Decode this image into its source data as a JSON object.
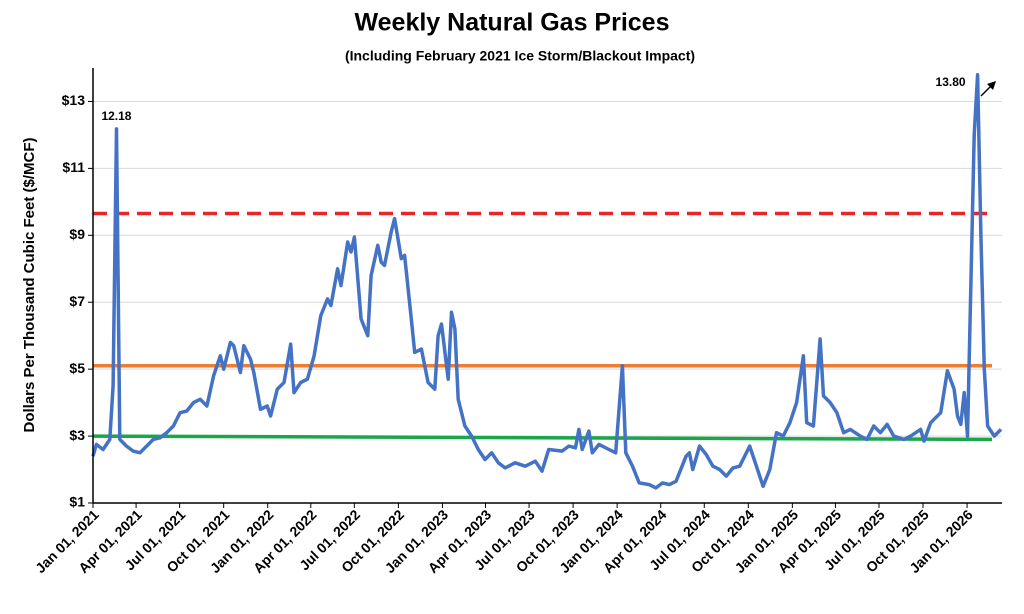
{
  "chart_data": {
    "type": "line",
    "title": "Weekly Natural Gas Prices",
    "subtitle": "(Including February 2021 Ice Storm/Blackout Impact)",
    "y_label": "Dollars Per Thousand Cubic Feet  ($/MCF)",
    "x": [
      "2021-01-01",
      "2021-01-08",
      "2021-01-22",
      "2021-02-05",
      "2021-02-12",
      "2021-02-19",
      "2021-02-26",
      "2021-03-12",
      "2021-03-26",
      "2021-04-09",
      "2021-04-23",
      "2021-05-07",
      "2021-05-21",
      "2021-06-04",
      "2021-06-18",
      "2021-07-02",
      "2021-07-16",
      "2021-07-30",
      "2021-08-13",
      "2021-08-27",
      "2021-09-10",
      "2021-09-24",
      "2021-10-01",
      "2021-10-15",
      "2021-10-22",
      "2021-11-05",
      "2021-11-12",
      "2021-11-26",
      "2021-12-03",
      "2021-12-17",
      "2021-12-31",
      "2022-01-07",
      "2022-01-21",
      "2022-02-04",
      "2022-02-18",
      "2022-02-25",
      "2022-03-11",
      "2022-03-25",
      "2022-04-08",
      "2022-04-22",
      "2022-05-06",
      "2022-05-13",
      "2022-05-27",
      "2022-06-03",
      "2022-06-17",
      "2022-06-24",
      "2022-07-01",
      "2022-07-15",
      "2022-07-29",
      "2022-08-05",
      "2022-08-19",
      "2022-08-26",
      "2022-09-02",
      "2022-09-16",
      "2022-09-23",
      "2022-10-07",
      "2022-10-14",
      "2022-10-28",
      "2022-11-04",
      "2022-11-18",
      "2022-12-02",
      "2022-12-16",
      "2022-12-23",
      "2022-12-30",
      "2023-01-13",
      "2023-01-20",
      "2023-01-27",
      "2023-02-03",
      "2023-02-17",
      "2023-03-03",
      "2023-03-17",
      "2023-03-31",
      "2023-04-14",
      "2023-04-28",
      "2023-05-12",
      "2023-06-02",
      "2023-06-23",
      "2023-07-14",
      "2023-07-28",
      "2023-08-11",
      "2023-09-08",
      "2023-09-22",
      "2023-10-06",
      "2023-10-13",
      "2023-10-20",
      "2023-11-03",
      "2023-11-10",
      "2023-11-24",
      "2023-12-15",
      "2023-12-29",
      "2024-01-12",
      "2024-01-19",
      "2024-02-02",
      "2024-02-16",
      "2024-03-08",
      "2024-03-22",
      "2024-04-05",
      "2024-04-19",
      "2024-05-03",
      "2024-05-24",
      "2024-05-31",
      "2024-06-07",
      "2024-06-21",
      "2024-07-05",
      "2024-07-19",
      "2024-08-02",
      "2024-08-16",
      "2024-08-30",
      "2024-09-13",
      "2024-10-04",
      "2024-10-18",
      "2024-11-01",
      "2024-11-15",
      "2024-11-29",
      "2024-12-13",
      "2024-12-27",
      "2025-01-10",
      "2025-01-24",
      "2025-01-31",
      "2025-02-14",
      "2025-02-28",
      "2025-03-07",
      "2025-03-21",
      "2025-04-04",
      "2025-04-18",
      "2025-05-02",
      "2025-05-23",
      "2025-06-06",
      "2025-06-20",
      "2025-07-04",
      "2025-07-18",
      "2025-08-01",
      "2025-08-22",
      "2025-09-05",
      "2025-09-26",
      "2025-10-03",
      "2025-10-17",
      "2025-11-07",
      "2025-11-21",
      "2025-12-05",
      "2025-12-12",
      "2025-12-19",
      "2025-12-26",
      "2026-01-02",
      "2026-01-16",
      "2026-01-23",
      "2026-01-30",
      "2026-02-06",
      "2026-02-13",
      "2026-02-27",
      "2026-03-13"
    ],
    "series": [
      {
        "color": "#4472c4",
        "values": [
          2.4,
          2.75,
          2.6,
          2.9,
          4.5,
          12.18,
          2.9,
          2.7,
          2.55,
          2.5,
          2.7,
          2.9,
          2.95,
          3.1,
          3.3,
          3.7,
          3.75,
          4.0,
          4.1,
          3.9,
          4.8,
          5.4,
          5.0,
          5.8,
          5.7,
          4.9,
          5.7,
          5.3,
          4.9,
          3.8,
          3.9,
          3.6,
          4.4,
          4.6,
          5.75,
          4.3,
          4.6,
          4.7,
          5.4,
          6.6,
          7.1,
          6.9,
          8.0,
          7.5,
          8.8,
          8.5,
          8.95,
          6.5,
          6.0,
          7.8,
          8.7,
          8.2,
          8.1,
          9.1,
          9.5,
          8.3,
          8.4,
          6.5,
          5.5,
          5.6,
          4.6,
          4.4,
          6.0,
          6.35,
          4.7,
          6.7,
          6.2,
          4.1,
          3.3,
          3.0,
          2.6,
          2.3,
          2.5,
          2.2,
          2.05,
          2.2,
          2.1,
          2.25,
          1.95,
          2.6,
          2.55,
          2.7,
          2.65,
          3.2,
          2.6,
          3.15,
          2.5,
          2.75,
          2.6,
          2.5,
          5.1,
          2.5,
          2.1,
          1.6,
          1.55,
          1.45,
          1.6,
          1.55,
          1.65,
          2.4,
          2.5,
          2.0,
          2.7,
          2.45,
          2.1,
          2.0,
          1.8,
          2.05,
          2.1,
          2.7,
          2.1,
          1.5,
          2.0,
          3.1,
          3.0,
          3.4,
          4.0,
          5.4,
          3.4,
          3.3,
          5.9,
          4.2,
          4.0,
          3.7,
          3.1,
          3.2,
          3.0,
          2.9,
          3.3,
          3.1,
          3.35,
          3.0,
          2.9,
          3.0,
          3.2,
          2.85,
          3.4,
          3.7,
          4.95,
          4.4,
          3.6,
          3.35,
          4.3,
          3.0,
          12.0,
          13.8,
          9.0,
          5.0,
          3.3,
          3.0,
          3.2
        ]
      }
    ],
    "reference_lines": [
      {
        "y": [
          9.65,
          9.65
        ],
        "color": "#e8262a",
        "dashed": true
      },
      {
        "y": [
          5.1,
          5.1
        ],
        "color": "#ed7d31",
        "dashed": false
      },
      {
        "y": [
          3.0,
          2.9
        ],
        "color": "#1aa64a",
        "dashed": false
      }
    ],
    "annotations": [
      {
        "x": "2021-02-19",
        "value": 12.18,
        "label": "12.18"
      },
      {
        "x": "2026-01-23",
        "value": 13.8,
        "label": "13.80"
      }
    ],
    "xlim": [
      "2021-01-01",
      "2026-03-15"
    ],
    "xticks": [
      {
        "value": "2021-01-01",
        "label": "Jan 01, 2021"
      },
      {
        "value": "2021-04-01",
        "label": "Apr 01, 2021"
      },
      {
        "value": "2021-07-01",
        "label": "Jul 01, 2021"
      },
      {
        "value": "2021-10-01",
        "label": "Oct 01, 2021"
      },
      {
        "value": "2022-01-01",
        "label": "Jan 01, 2022"
      },
      {
        "value": "2022-04-01",
        "label": "Apr 01, 2022"
      },
      {
        "value": "2022-07-01",
        "label": "Jul 01, 2022"
      },
      {
        "value": "2022-10-01",
        "label": "Oct 01, 2022"
      },
      {
        "value": "2023-01-01",
        "label": "Jan 01, 2023"
      },
      {
        "value": "2023-04-01",
        "label": "Apr 01, 2023"
      },
      {
        "value": "2023-07-01",
        "label": "Jul 01, 2023"
      },
      {
        "value": "2023-10-01",
        "label": "Oct 01, 2023"
      },
      {
        "value": "2024-01-01",
        "label": "Jan 01, 2024"
      },
      {
        "value": "2024-04-01",
        "label": "Apr 01, 2024"
      },
      {
        "value": "2024-07-01",
        "label": "Jul 01, 2024"
      },
      {
        "value": "2024-10-01",
        "label": "Oct 01, 2024"
      },
      {
        "value": "2025-01-01",
        "label": "Jan 01, 2025"
      },
      {
        "value": "2025-04-01",
        "label": "Apr 01, 2025"
      },
      {
        "value": "2025-07-01",
        "label": "Jul 01, 2025"
      },
      {
        "value": "2025-10-01",
        "label": "Oct 01, 2025"
      },
      {
        "value": "2026-01-01",
        "label": "Jan 01, 2026"
      }
    ],
    "ylim": [
      1,
      14
    ],
    "yticks": [
      {
        "value": 1,
        "label": "$1"
      },
      {
        "value": 3,
        "label": "$3"
      },
      {
        "value": 5,
        "label": "$5"
      },
      {
        "value": 7,
        "label": "$7"
      },
      {
        "value": 9,
        "label": "$9"
      },
      {
        "value": 11,
        "label": "$11"
      },
      {
        "value": 13,
        "label": "$13"
      }
    ],
    "grid": true
  }
}
